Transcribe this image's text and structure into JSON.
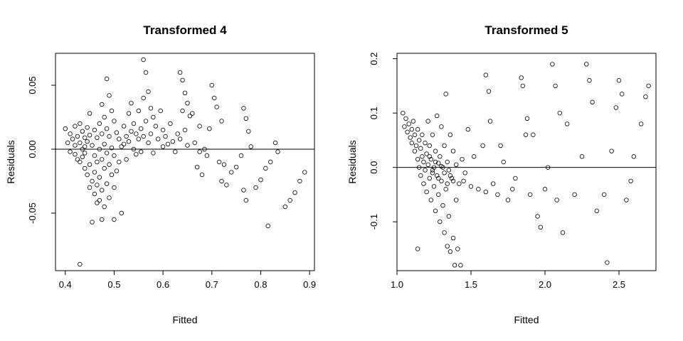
{
  "chart_data": [
    {
      "type": "scatter",
      "title": "Transformed 4",
      "xlabel": "Fitted",
      "ylabel": "Residuals",
      "xlim": [
        0.38,
        0.91
      ],
      "ylim": [
        -0.095,
        0.075
      ],
      "xticks": [
        "0.4",
        "0.5",
        "0.6",
        "0.7",
        "0.8",
        "0.9"
      ],
      "yticks": [
        "-0.05",
        "0.00",
        "0.05"
      ],
      "hline": 0,
      "points": [
        [
          0.4,
          0.016
        ],
        [
          0.405,
          0.005
        ],
        [
          0.41,
          0.012
        ],
        [
          0.41,
          -0.002
        ],
        [
          0.415,
          0.008
        ],
        [
          0.42,
          0.018
        ],
        [
          0.42,
          0.003
        ],
        [
          0.42,
          -0.004
        ],
        [
          0.425,
          0.01
        ],
        [
          0.425,
          -0.008
        ],
        [
          0.43,
          0.02
        ],
        [
          0.43,
          0.005
        ],
        [
          0.43,
          -0.01
        ],
        [
          0.435,
          0.014
        ],
        [
          0.435,
          0.0
        ],
        [
          0.435,
          -0.006
        ],
        [
          0.44,
          0.009
        ],
        [
          0.44,
          -0.003
        ],
        [
          0.44,
          -0.015
        ],
        [
          0.44,
          0.002
        ],
        [
          0.445,
          0.017
        ],
        [
          0.445,
          -0.02
        ],
        [
          0.445,
          0.006
        ],
        [
          0.45,
          0.028
        ],
        [
          0.45,
          0.011
        ],
        [
          0.45,
          -0.012
        ],
        [
          0.45,
          -0.03
        ],
        [
          0.455,
          0.003
        ],
        [
          0.455,
          -0.025
        ],
        [
          0.455,
          -0.057
        ],
        [
          0.46,
          0.015
        ],
        [
          0.46,
          -0.005
        ],
        [
          0.46,
          -0.018
        ],
        [
          0.46,
          -0.035
        ],
        [
          0.465,
          0.009
        ],
        [
          0.465,
          -0.01
        ],
        [
          0.465,
          -0.028
        ],
        [
          0.47,
          0.02
        ],
        [
          0.47,
          0.0
        ],
        [
          0.47,
          -0.022
        ],
        [
          0.47,
          -0.04
        ],
        [
          0.475,
          0.035
        ],
        [
          0.475,
          0.012
        ],
        [
          0.475,
          -0.008
        ],
        [
          0.475,
          -0.032
        ],
        [
          0.48,
          0.025
        ],
        [
          0.48,
          0.004
        ],
        [
          0.48,
          -0.015
        ],
        [
          0.48,
          -0.045
        ],
        [
          0.485,
          0.055
        ],
        [
          0.485,
          0.016
        ],
        [
          0.485,
          -0.003
        ],
        [
          0.485,
          -0.027
        ],
        [
          0.49,
          0.042
        ],
        [
          0.49,
          0.01
        ],
        [
          0.49,
          -0.012
        ],
        [
          0.49,
          -0.038
        ],
        [
          0.495,
          0.03
        ],
        [
          0.495,
          0.001
        ],
        [
          0.495,
          -0.02
        ],
        [
          0.5,
          0.022
        ],
        [
          0.5,
          -0.005
        ],
        [
          0.5,
          -0.03
        ],
        [
          0.5,
          -0.055
        ],
        [
          0.505,
          0.013
        ],
        [
          0.505,
          -0.017
        ],
        [
          0.51,
          0.008
        ],
        [
          0.51,
          -0.01
        ],
        [
          0.515,
          0.002
        ],
        [
          0.515,
          -0.05
        ],
        [
          0.52,
          0.018
        ],
        [
          0.52,
          0.004
        ],
        [
          0.525,
          0.01
        ],
        [
          0.525,
          -0.008
        ],
        [
          0.53,
          0.028
        ],
        [
          0.53,
          0.006
        ],
        [
          0.535,
          0.036
        ],
        [
          0.535,
          0.014
        ],
        [
          0.54,
          0.02
        ],
        [
          0.54,
          0.0
        ],
        [
          0.545,
          0.012
        ],
        [
          0.545,
          -0.004
        ],
        [
          0.55,
          0.03
        ],
        [
          0.55,
          0.008
        ],
        [
          0.555,
          0.016
        ],
        [
          0.555,
          -0.002
        ],
        [
          0.56,
          0.07
        ],
        [
          0.56,
          0.04
        ],
        [
          0.56,
          0.01
        ],
        [
          0.565,
          0.06
        ],
        [
          0.565,
          0.022
        ],
        [
          0.57,
          0.045
        ],
        [
          0.57,
          0.005
        ],
        [
          0.575,
          0.032
        ],
        [
          0.575,
          0.012
        ],
        [
          0.58,
          0.025
        ],
        [
          0.58,
          -0.003
        ],
        [
          0.585,
          0.018
        ],
        [
          0.59,
          0.008
        ],
        [
          0.595,
          0.03
        ],
        [
          0.6,
          0.015
        ],
        [
          0.6,
          0.002
        ],
        [
          0.605,
          0.01
        ],
        [
          0.61,
          0.004
        ],
        [
          0.615,
          0.02
        ],
        [
          0.62,
          0.006
        ],
        [
          0.625,
          -0.002
        ],
        [
          0.63,
          0.012
        ],
        [
          0.635,
          0.06
        ],
        [
          0.635,
          0.008
        ],
        [
          0.64,
          0.054
        ],
        [
          0.64,
          0.03
        ],
        [
          0.645,
          0.044
        ],
        [
          0.645,
          0.015
        ],
        [
          0.65,
          0.036
        ],
        [
          0.65,
          0.003
        ],
        [
          0.655,
          0.026
        ],
        [
          0.66,
          0.028
        ],
        [
          0.665,
          0.005
        ],
        [
          0.67,
          -0.014
        ],
        [
          0.675,
          0.018
        ],
        [
          0.675,
          -0.002
        ],
        [
          0.68,
          -0.02
        ],
        [
          0.685,
          0.0
        ],
        [
          0.69,
          -0.005
        ],
        [
          0.695,
          0.016
        ],
        [
          0.7,
          0.05
        ],
        [
          0.705,
          0.04
        ],
        [
          0.71,
          0.033
        ],
        [
          0.715,
          -0.01
        ],
        [
          0.72,
          0.022
        ],
        [
          0.72,
          -0.025
        ],
        [
          0.725,
          -0.012
        ],
        [
          0.73,
          -0.028
        ],
        [
          0.74,
          -0.018
        ],
        [
          0.75,
          -0.014
        ],
        [
          0.76,
          -0.005
        ],
        [
          0.765,
          0.032
        ],
        [
          0.765,
          -0.032
        ],
        [
          0.77,
          0.024
        ],
        [
          0.77,
          -0.04
        ],
        [
          0.775,
          0.014
        ],
        [
          0.78,
          0.002
        ],
        [
          0.79,
          -0.03
        ],
        [
          0.8,
          -0.024
        ],
        [
          0.81,
          -0.015
        ],
        [
          0.815,
          -0.06
        ],
        [
          0.82,
          -0.01
        ],
        [
          0.83,
          0.005
        ],
        [
          0.835,
          -0.002
        ],
        [
          0.85,
          -0.045
        ],
        [
          0.86,
          -0.04
        ],
        [
          0.87,
          -0.034
        ],
        [
          0.88,
          -0.025
        ],
        [
          0.89,
          -0.018
        ],
        [
          0.43,
          -0.09
        ],
        [
          0.465,
          -0.042
        ],
        [
          0.475,
          -0.055
        ]
      ]
    },
    {
      "type": "scatter",
      "title": "Transformed 5",
      "xlabel": "Fitted",
      "ylabel": "Residuals",
      "xlim": [
        1.0,
        2.75
      ],
      "ylim": [
        -0.19,
        0.21
      ],
      "xticks": [
        "1.0",
        "1.5",
        "2.0",
        "2.5"
      ],
      "yticks": [
        "-0.1",
        "0.0",
        "0.1",
        "0.2"
      ],
      "hline": 0,
      "points": [
        [
          1.04,
          0.1
        ],
        [
          1.05,
          0.075
        ],
        [
          1.06,
          0.09
        ],
        [
          1.07,
          0.065
        ],
        [
          1.08,
          0.08
        ],
        [
          1.09,
          0.055
        ],
        [
          1.1,
          0.07
        ],
        [
          1.1,
          0.045
        ],
        [
          1.11,
          0.085
        ],
        [
          1.12,
          0.06
        ],
        [
          1.12,
          0.03
        ],
        [
          1.13,
          0.04
        ],
        [
          1.14,
          0.07
        ],
        [
          1.14,
          0.015
        ],
        [
          1.15,
          0.05
        ],
        [
          1.15,
          0.0
        ],
        [
          1.16,
          0.035
        ],
        [
          1.16,
          -0.015
        ],
        [
          1.17,
          0.06
        ],
        [
          1.17,
          0.02
        ],
        [
          1.18,
          0.01
        ],
        [
          1.18,
          -0.03
        ],
        [
          1.19,
          0.045
        ],
        [
          1.19,
          -0.005
        ],
        [
          1.2,
          0.025
        ],
        [
          1.2,
          -0.045
        ],
        [
          1.21,
          0.085
        ],
        [
          1.21,
          0.005
        ],
        [
          1.22,
          -0.02
        ],
        [
          1.22,
          0.04
        ],
        [
          1.23,
          -0.06
        ],
        [
          1.23,
          0.015
        ],
        [
          1.24,
          -0.01
        ],
        [
          1.24,
          0.06
        ],
        [
          1.25,
          -0.035
        ],
        [
          1.25,
          0.0
        ],
        [
          1.26,
          -0.08
        ],
        [
          1.26,
          0.03
        ],
        [
          1.27,
          -0.015
        ],
        [
          1.27,
          0.095
        ],
        [
          1.28,
          -0.05
        ],
        [
          1.28,
          0.008
        ],
        [
          1.29,
          -0.1
        ],
        [
          1.29,
          0.02
        ],
        [
          1.3,
          -0.025
        ],
        [
          1.3,
          0.075
        ],
        [
          1.31,
          -0.07
        ],
        [
          1.31,
          0.0
        ],
        [
          1.32,
          -0.12
        ],
        [
          1.32,
          0.04
        ],
        [
          1.33,
          -0.04
        ],
        [
          1.33,
          0.135
        ],
        [
          1.34,
          -0.145
        ],
        [
          1.34,
          0.01
        ],
        [
          1.35,
          -0.09
        ],
        [
          1.35,
          -0.005
        ],
        [
          1.36,
          -0.155
        ],
        [
          1.36,
          0.06
        ],
        [
          1.37,
          -0.02
        ],
        [
          1.38,
          -0.13
        ],
        [
          1.38,
          0.03
        ],
        [
          1.39,
          -0.18
        ],
        [
          1.4,
          -0.06
        ],
        [
          1.4,
          0.005
        ],
        [
          1.41,
          -0.15
        ],
        [
          1.42,
          -0.03
        ],
        [
          1.43,
          -0.18
        ],
        [
          1.44,
          0.015
        ],
        [
          1.45,
          -0.025
        ],
        [
          1.46,
          -0.01
        ],
        [
          1.48,
          0.07
        ],
        [
          1.5,
          -0.035
        ],
        [
          1.52,
          0.02
        ],
        [
          1.55,
          -0.04
        ],
        [
          1.58,
          0.04
        ],
        [
          1.6,
          0.17
        ],
        [
          1.6,
          -0.045
        ],
        [
          1.62,
          0.14
        ],
        [
          1.63,
          0.085
        ],
        [
          1.65,
          -0.03
        ],
        [
          1.68,
          -0.05
        ],
        [
          1.7,
          0.04
        ],
        [
          1.72,
          0.01
        ],
        [
          1.75,
          -0.06
        ],
        [
          1.78,
          -0.04
        ],
        [
          1.8,
          -0.02
        ],
        [
          1.84,
          0.165
        ],
        [
          1.85,
          0.15
        ],
        [
          1.87,
          0.06
        ],
        [
          1.88,
          0.09
        ],
        [
          1.9,
          -0.05
        ],
        [
          1.92,
          0.06
        ],
        [
          1.95,
          -0.09
        ],
        [
          1.97,
          -0.11
        ],
        [
          2.0,
          -0.04
        ],
        [
          2.02,
          0.0
        ],
        [
          2.05,
          0.19
        ],
        [
          2.07,
          0.15
        ],
        [
          2.08,
          -0.06
        ],
        [
          2.1,
          0.1
        ],
        [
          2.12,
          -0.12
        ],
        [
          2.15,
          0.08
        ],
        [
          2.2,
          -0.05
        ],
        [
          2.25,
          0.02
        ],
        [
          2.28,
          0.19
        ],
        [
          2.3,
          0.16
        ],
        [
          2.32,
          0.12
        ],
        [
          2.35,
          -0.08
        ],
        [
          2.4,
          -0.05
        ],
        [
          2.42,
          -0.175
        ],
        [
          2.45,
          0.03
        ],
        [
          2.48,
          0.11
        ],
        [
          2.5,
          0.16
        ],
        [
          2.52,
          0.135
        ],
        [
          2.55,
          -0.06
        ],
        [
          2.58,
          -0.025
        ],
        [
          2.6,
          0.02
        ],
        [
          2.65,
          0.08
        ],
        [
          2.68,
          0.13
        ],
        [
          2.7,
          0.15
        ],
        [
          1.22,
          0.02
        ],
        [
          1.24,
          -0.005
        ],
        [
          1.26,
          0.01
        ],
        [
          1.28,
          -0.02
        ],
        [
          1.3,
          0.002
        ],
        [
          1.32,
          -0.01
        ],
        [
          1.34,
          -0.03
        ],
        [
          1.36,
          -0.015
        ],
        [
          1.38,
          -0.025
        ],
        [
          1.14,
          -0.15
        ]
      ]
    }
  ]
}
